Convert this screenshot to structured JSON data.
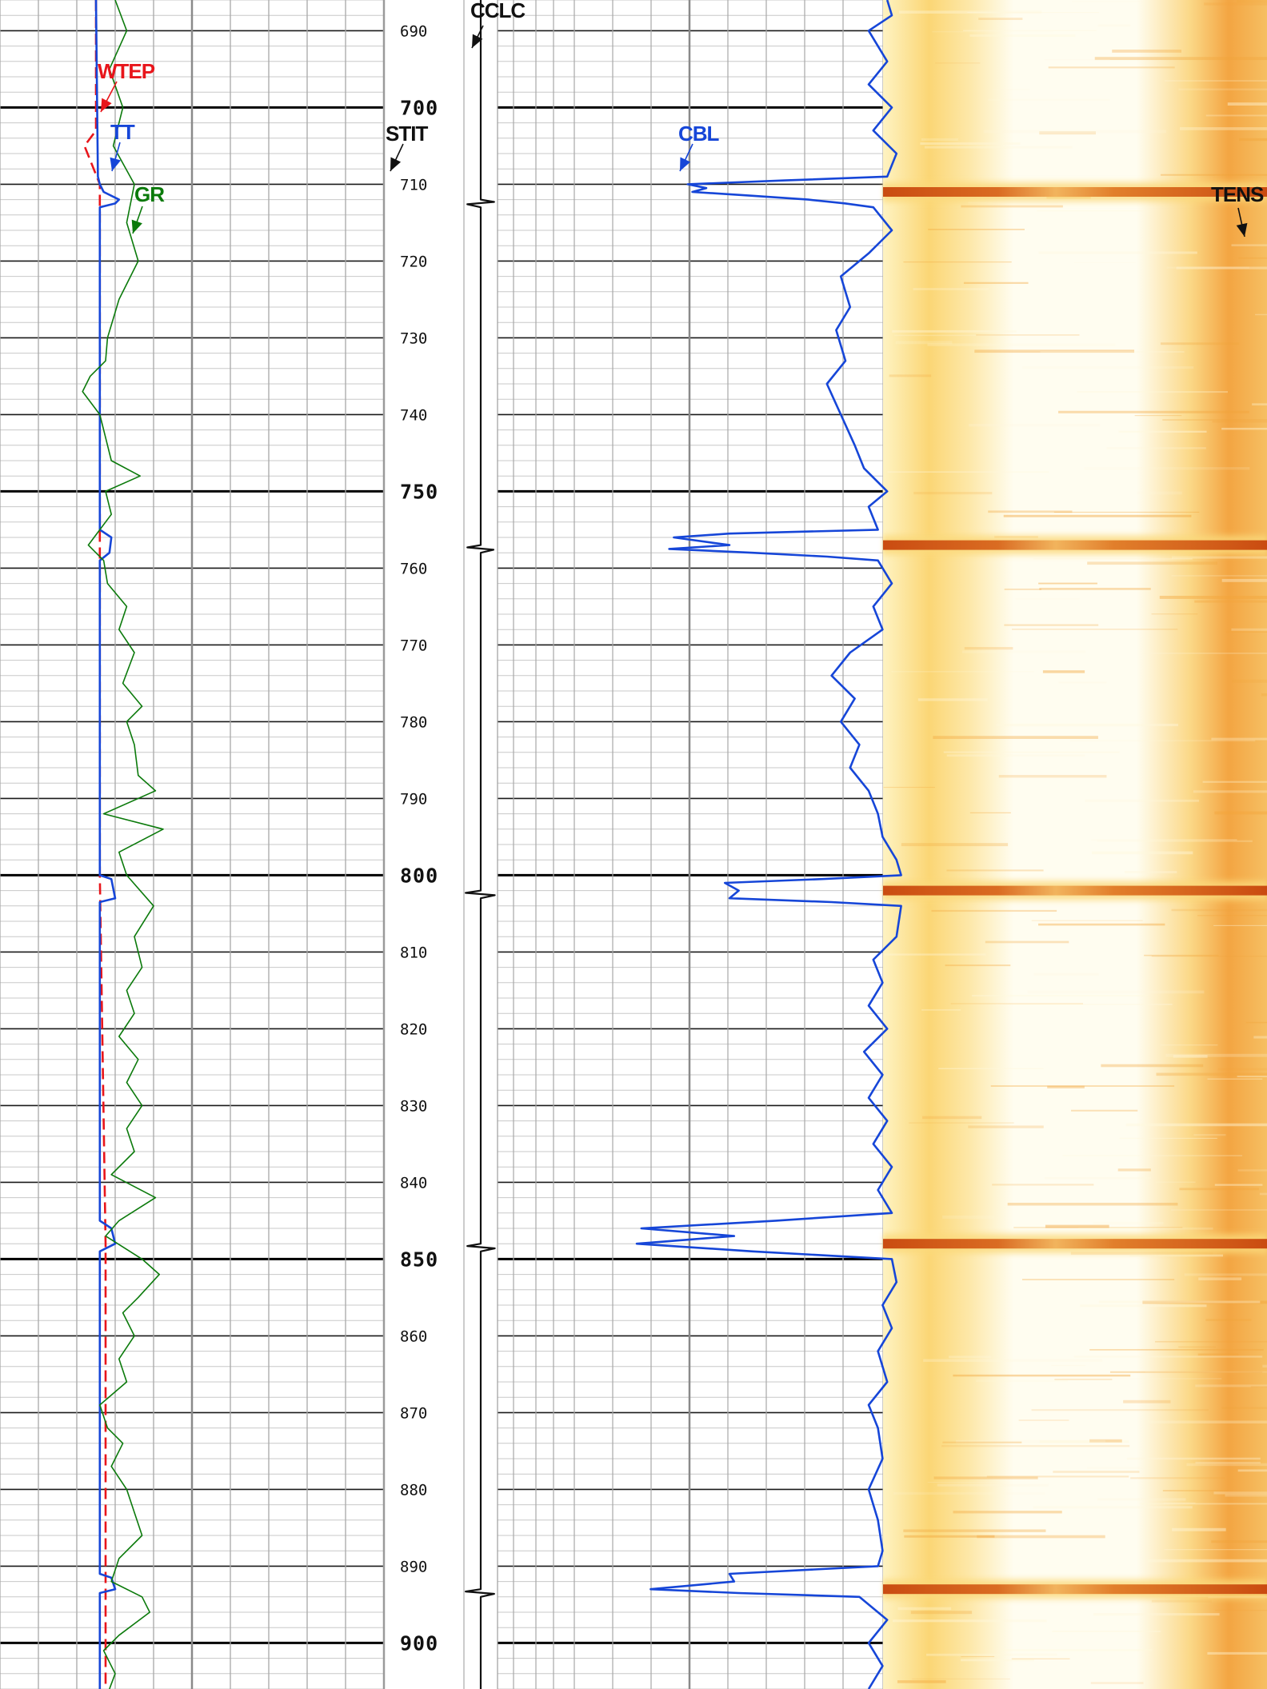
{
  "chart_data": {
    "type": "line",
    "title": "",
    "y_axis": {
      "label": "",
      "range": [
        686,
        906
      ],
      "direction": "down",
      "major_every": 50,
      "minor_every": 10,
      "tick_labels": [
        "690",
        "700",
        "710",
        "720",
        "730",
        "740",
        "750",
        "760",
        "770",
        "780",
        "790",
        "800",
        "810",
        "820",
        "830",
        "840",
        "850",
        "860",
        "870",
        "880",
        "890",
        "900"
      ]
    },
    "grid": true,
    "tracks": [
      {
        "name": "track-1",
        "curves": [
          "WTEP",
          "TT",
          "GR"
        ]
      },
      {
        "name": "depth-track",
        "curves": []
      },
      {
        "name": "track-ccl",
        "curves": [
          "CCLC"
        ]
      },
      {
        "name": "track-2",
        "curves": [
          "STIT",
          "CBL"
        ]
      },
      {
        "name": "track-image",
        "curves": [
          "TENS"
        ]
      }
    ],
    "series": [
      {
        "name": "WTEP",
        "color": "#e8151b",
        "style": "dashed",
        "points": [
          [
            686,
            0.5
          ],
          [
            703,
            0.5
          ],
          [
            705,
            0.44
          ],
          [
            710,
            0.52
          ],
          [
            800,
            0.52
          ],
          [
            848,
            0.55
          ],
          [
            906,
            0.55
          ]
        ]
      },
      {
        "name": "TT",
        "color": "#1646d8",
        "style": "solid",
        "points": [
          [
            686,
            0.5
          ],
          [
            709,
            0.51
          ],
          [
            710,
            0.52
          ],
          [
            711,
            0.54
          ],
          [
            712,
            0.62
          ],
          [
            712.5,
            0.6
          ],
          [
            713,
            0.52
          ],
          [
            755,
            0.52
          ],
          [
            756,
            0.58
          ],
          [
            758,
            0.57
          ],
          [
            759,
            0.52
          ],
          [
            800,
            0.52
          ],
          [
            800.5,
            0.58
          ],
          [
            803,
            0.6
          ],
          [
            803.5,
            0.52
          ],
          [
            845,
            0.52
          ],
          [
            846,
            0.58
          ],
          [
            848,
            0.6
          ],
          [
            849,
            0.52
          ],
          [
            891,
            0.52
          ],
          [
            891.5,
            0.58
          ],
          [
            893,
            0.6
          ],
          [
            893.5,
            0.52
          ],
          [
            906,
            0.52
          ]
        ]
      },
      {
        "name": "GR",
        "color": "#0b7a0b",
        "style": "solid",
        "points": [
          [
            686,
            0.6
          ],
          [
            690,
            0.66
          ],
          [
            695,
            0.57
          ],
          [
            700,
            0.64
          ],
          [
            705,
            0.59
          ],
          [
            710,
            0.7
          ],
          [
            715,
            0.66
          ],
          [
            720,
            0.72
          ],
          [
            725,
            0.62
          ],
          [
            730,
            0.56
          ],
          [
            733,
            0.55
          ],
          [
            735,
            0.47
          ],
          [
            737,
            0.43
          ],
          [
            740,
            0.52
          ],
          [
            743,
            0.55
          ],
          [
            746,
            0.58
          ],
          [
            748,
            0.73
          ],
          [
            750,
            0.55
          ],
          [
            753,
            0.58
          ],
          [
            755,
            0.52
          ],
          [
            757,
            0.46
          ],
          [
            759,
            0.54
          ],
          [
            762,
            0.56
          ],
          [
            765,
            0.66
          ],
          [
            768,
            0.62
          ],
          [
            771,
            0.7
          ],
          [
            775,
            0.64
          ],
          [
            778,
            0.74
          ],
          [
            780,
            0.66
          ],
          [
            783,
            0.7
          ],
          [
            787,
            0.72
          ],
          [
            789,
            0.81
          ],
          [
            792,
            0.54
          ],
          [
            794,
            0.85
          ],
          [
            797,
            0.62
          ],
          [
            800,
            0.66
          ],
          [
            804,
            0.8
          ],
          [
            808,
            0.7
          ],
          [
            812,
            0.74
          ],
          [
            815,
            0.66
          ],
          [
            818,
            0.7
          ],
          [
            821,
            0.62
          ],
          [
            824,
            0.72
          ],
          [
            827,
            0.66
          ],
          [
            830,
            0.74
          ],
          [
            833,
            0.66
          ],
          [
            836,
            0.7
          ],
          [
            839,
            0.58
          ],
          [
            842,
            0.81
          ],
          [
            845,
            0.62
          ],
          [
            847,
            0.55
          ],
          [
            850,
            0.74
          ],
          [
            852,
            0.83
          ],
          [
            855,
            0.72
          ],
          [
            857,
            0.64
          ],
          [
            860,
            0.7
          ],
          [
            863,
            0.62
          ],
          [
            866,
            0.66
          ],
          [
            869,
            0.52
          ],
          [
            872,
            0.56
          ],
          [
            874,
            0.64
          ],
          [
            877,
            0.58
          ],
          [
            880,
            0.66
          ],
          [
            883,
            0.7
          ],
          [
            886,
            0.74
          ],
          [
            889,
            0.62
          ],
          [
            892,
            0.58
          ],
          [
            894,
            0.74
          ],
          [
            896,
            0.78
          ],
          [
            899,
            0.62
          ],
          [
            901,
            0.54
          ],
          [
            904,
            0.6
          ],
          [
            906,
            0.57
          ]
        ]
      },
      {
        "name": "CBL",
        "color": "#1646d8",
        "style": "solid",
        "points": [
          [
            686,
            0.84
          ],
          [
            688,
            0.85
          ],
          [
            690,
            0.8
          ],
          [
            694,
            0.84
          ],
          [
            697,
            0.8
          ],
          [
            700,
            0.85
          ],
          [
            703,
            0.81
          ],
          [
            706,
            0.86
          ],
          [
            709,
            0.84
          ],
          [
            709.5,
            0.62
          ],
          [
            710,
            0.41
          ],
          [
            710.5,
            0.45
          ],
          [
            711,
            0.42
          ],
          [
            711.5,
            0.55
          ],
          [
            712,
            0.67
          ],
          [
            712.5,
            0.75
          ],
          [
            713,
            0.81
          ],
          [
            716,
            0.85
          ],
          [
            719,
            0.8
          ],
          [
            722,
            0.74
          ],
          [
            726,
            0.76
          ],
          [
            729,
            0.73
          ],
          [
            733,
            0.75
          ],
          [
            736,
            0.71
          ],
          [
            740,
            0.74
          ],
          [
            744,
            0.77
          ],
          [
            747,
            0.79
          ],
          [
            750,
            0.84
          ],
          [
            752,
            0.8
          ],
          [
            755,
            0.82
          ],
          [
            755.5,
            0.5
          ],
          [
            756,
            0.38
          ],
          [
            757,
            0.5
          ],
          [
            757.5,
            0.37
          ],
          [
            758,
            0.55
          ],
          [
            758.5,
            0.71
          ],
          [
            759,
            0.82
          ],
          [
            762,
            0.85
          ],
          [
            765,
            0.81
          ],
          [
            768,
            0.83
          ],
          [
            771,
            0.76
          ],
          [
            774,
            0.72
          ],
          [
            777,
            0.77
          ],
          [
            780,
            0.74
          ],
          [
            783,
            0.78
          ],
          [
            786,
            0.76
          ],
          [
            789,
            0.8
          ],
          [
            792,
            0.82
          ],
          [
            795,
            0.83
          ],
          [
            798,
            0.86
          ],
          [
            800,
            0.87
          ],
          [
            800.5,
            0.7
          ],
          [
            801,
            0.49
          ],
          [
            802,
            0.52
          ],
          [
            803,
            0.5
          ],
          [
            803.5,
            0.72
          ],
          [
            804,
            0.87
          ],
          [
            808,
            0.86
          ],
          [
            811,
            0.81
          ],
          [
            814,
            0.83
          ],
          [
            817,
            0.8
          ],
          [
            820,
            0.84
          ],
          [
            823,
            0.79
          ],
          [
            826,
            0.83
          ],
          [
            829,
            0.8
          ],
          [
            832,
            0.84
          ],
          [
            835,
            0.81
          ],
          [
            838,
            0.85
          ],
          [
            841,
            0.82
          ],
          [
            844,
            0.85
          ],
          [
            845,
            0.6
          ],
          [
            846,
            0.31
          ],
          [
            847,
            0.51
          ],
          [
            848,
            0.3
          ],
          [
            849,
            0.55
          ],
          [
            850,
            0.85
          ],
          [
            853,
            0.86
          ],
          [
            856,
            0.83
          ],
          [
            859,
            0.85
          ],
          [
            862,
            0.82
          ],
          [
            866,
            0.84
          ],
          [
            869,
            0.8
          ],
          [
            872,
            0.82
          ],
          [
            876,
            0.83
          ],
          [
            880,
            0.8
          ],
          [
            884,
            0.82
          ],
          [
            888,
            0.83
          ],
          [
            890,
            0.82
          ],
          [
            891,
            0.5
          ],
          [
            892,
            0.51
          ],
          [
            893,
            0.33
          ],
          [
            893.5,
            0.52
          ],
          [
            894,
            0.78
          ],
          [
            897,
            0.84
          ],
          [
            900,
            0.8
          ],
          [
            903,
            0.83
          ],
          [
            906,
            0.8
          ]
        ]
      },
      {
        "name": "CCLC",
        "color": "#111111",
        "style": "solid",
        "points": [
          [
            686,
            0.5
          ],
          [
            712,
            0.5
          ],
          [
            712.3,
            0.9
          ],
          [
            712.6,
            0.1
          ],
          [
            713,
            0.5
          ],
          [
            757,
            0.5
          ],
          [
            757.3,
            0.1
          ],
          [
            757.6,
            0.88
          ],
          [
            758,
            0.5
          ],
          [
            802,
            0.5
          ],
          [
            802.3,
            0.05
          ],
          [
            802.6,
            0.92
          ],
          [
            803,
            0.5
          ],
          [
            848,
            0.5
          ],
          [
            848.3,
            0.1
          ],
          [
            848.6,
            0.92
          ],
          [
            849,
            0.5
          ],
          [
            893,
            0.5
          ],
          [
            893.3,
            0.05
          ],
          [
            893.6,
            0.9
          ],
          [
            894,
            0.5
          ],
          [
            906,
            0.5
          ]
        ]
      }
    ],
    "image_track": {
      "name": "TENS",
      "colors": {
        "low": "#fffdf0",
        "mid": "#fbd675",
        "high": "#c7440b"
      },
      "dark_bands_depth": [
        711,
        757,
        802,
        848,
        893
      ]
    },
    "annotations": [
      {
        "label": "CCLC",
        "curve": "CCLC"
      },
      {
        "label": "WTEP",
        "curve": "WTEP"
      },
      {
        "label": "TT",
        "curve": "TT"
      },
      {
        "label": "STIT",
        "curve": "STIT"
      },
      {
        "label": "CBL",
        "curve": "CBL"
      },
      {
        "label": "GR",
        "curve": "GR"
      },
      {
        "label": "TENS",
        "curve": "TENS"
      }
    ]
  }
}
